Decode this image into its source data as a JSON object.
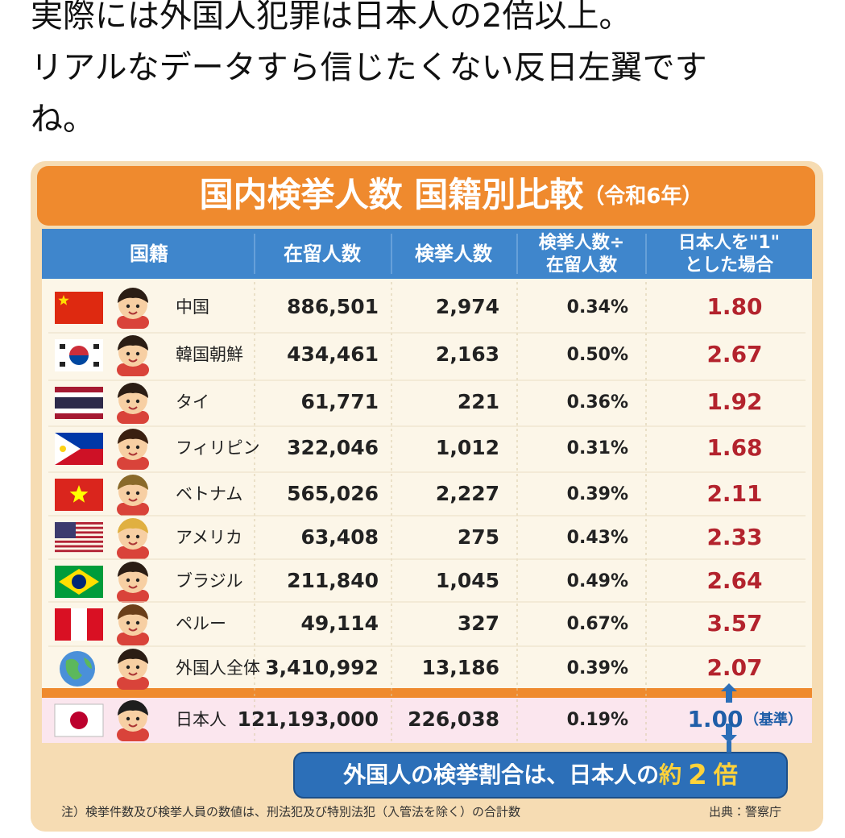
{
  "post": {
    "text_lines": [
      "実際には外国人犯罪は日本人の2倍以上。",
      "リアルなデータすら信じたくない反日左翼です",
      "ね。"
    ]
  },
  "table": {
    "title": "国内検挙人数 国籍別比較",
    "title_suffix": "（令和6年）",
    "headers": [
      [
        "国籍"
      ],
      [
        "在留人数"
      ],
      [
        "検挙人数"
      ],
      [
        "検挙人数÷",
        "在留人数"
      ],
      [
        "日本人を\"1\"",
        "とした場合"
      ]
    ],
    "rows": [
      {
        "name": "中国",
        "residents": "886,501",
        "arrests": "2,974",
        "rate": "0.34%",
        "ratio": "1.80"
      },
      {
        "name": "韓国朝鮮",
        "residents": "434,461",
        "arrests": "2,163",
        "rate": "0.50%",
        "ratio": "2.67"
      },
      {
        "name": "タイ",
        "residents": "61,771",
        "arrests": "221",
        "rate": "0.36%",
        "ratio": "1.92"
      },
      {
        "name": "フィリピン",
        "residents": "322,046",
        "arrests": "1,012",
        "rate": "0.31%",
        "ratio": "1.68"
      },
      {
        "name": "ベトナム",
        "residents": "565,026",
        "arrests": "2,227",
        "rate": "0.39%",
        "ratio": "2.11"
      },
      {
        "name": "アメリカ",
        "residents": "63,408",
        "arrests": "275",
        "rate": "0.43%",
        "ratio": "2.33"
      },
      {
        "name": "ブラジル",
        "residents": "211,840",
        "arrests": "1,045",
        "rate": "0.49%",
        "ratio": "2.64"
      },
      {
        "name": "ペルー",
        "residents": "49,114",
        "arrests": "327",
        "rate": "0.67%",
        "ratio": "3.57"
      },
      {
        "name": "外国人全体",
        "residents": "3,410,992",
        "arrests": "13,186",
        "rate": "0.39%",
        "ratio": "2.07"
      }
    ],
    "base_row": {
      "name": "日本人",
      "residents": "121,193,000",
      "arrests": "226,038",
      "rate": "0.19%",
      "ratio": "1.00",
      "note": "（基準）"
    },
    "callout": [
      "外国人の検挙割合は、日本人の",
      "約",
      "2",
      "倍"
    ],
    "footnote": "注）検挙件数及び検挙人員の数値は、刑法犯及び特別法犯（入管法を除く）の合計数",
    "source": "出典：警察庁"
  }
}
